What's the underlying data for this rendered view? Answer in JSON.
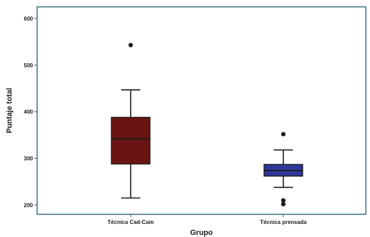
{
  "chart_data": {
    "type": "box",
    "xlabel": "Grupo",
    "ylabel": "Puntaje total",
    "ylim": [
      180,
      625
    ],
    "yticks": [
      200,
      300,
      400,
      500,
      600
    ],
    "grid": false,
    "categories": [
      "Técnica Cad-Cam",
      "Técnica prensada"
    ],
    "boxes": [
      {
        "category": "Técnica Cad-Cam",
        "whisker_low": 215,
        "q1": 288,
        "median": 342,
        "q3": 388,
        "whisker_high": 447,
        "outliers": [
          543
        ],
        "color": "#6b1414"
      },
      {
        "category": "Técnica prensada",
        "whisker_low": 238,
        "q1": 262,
        "median": 274,
        "q3": 287,
        "whisker_high": 318,
        "outliers": [
          352,
          210,
          202
        ],
        "color": "#2d3a9c"
      }
    ]
  },
  "colors": {
    "frame": "#3a6e7d",
    "ink": "#1a1a1a"
  }
}
